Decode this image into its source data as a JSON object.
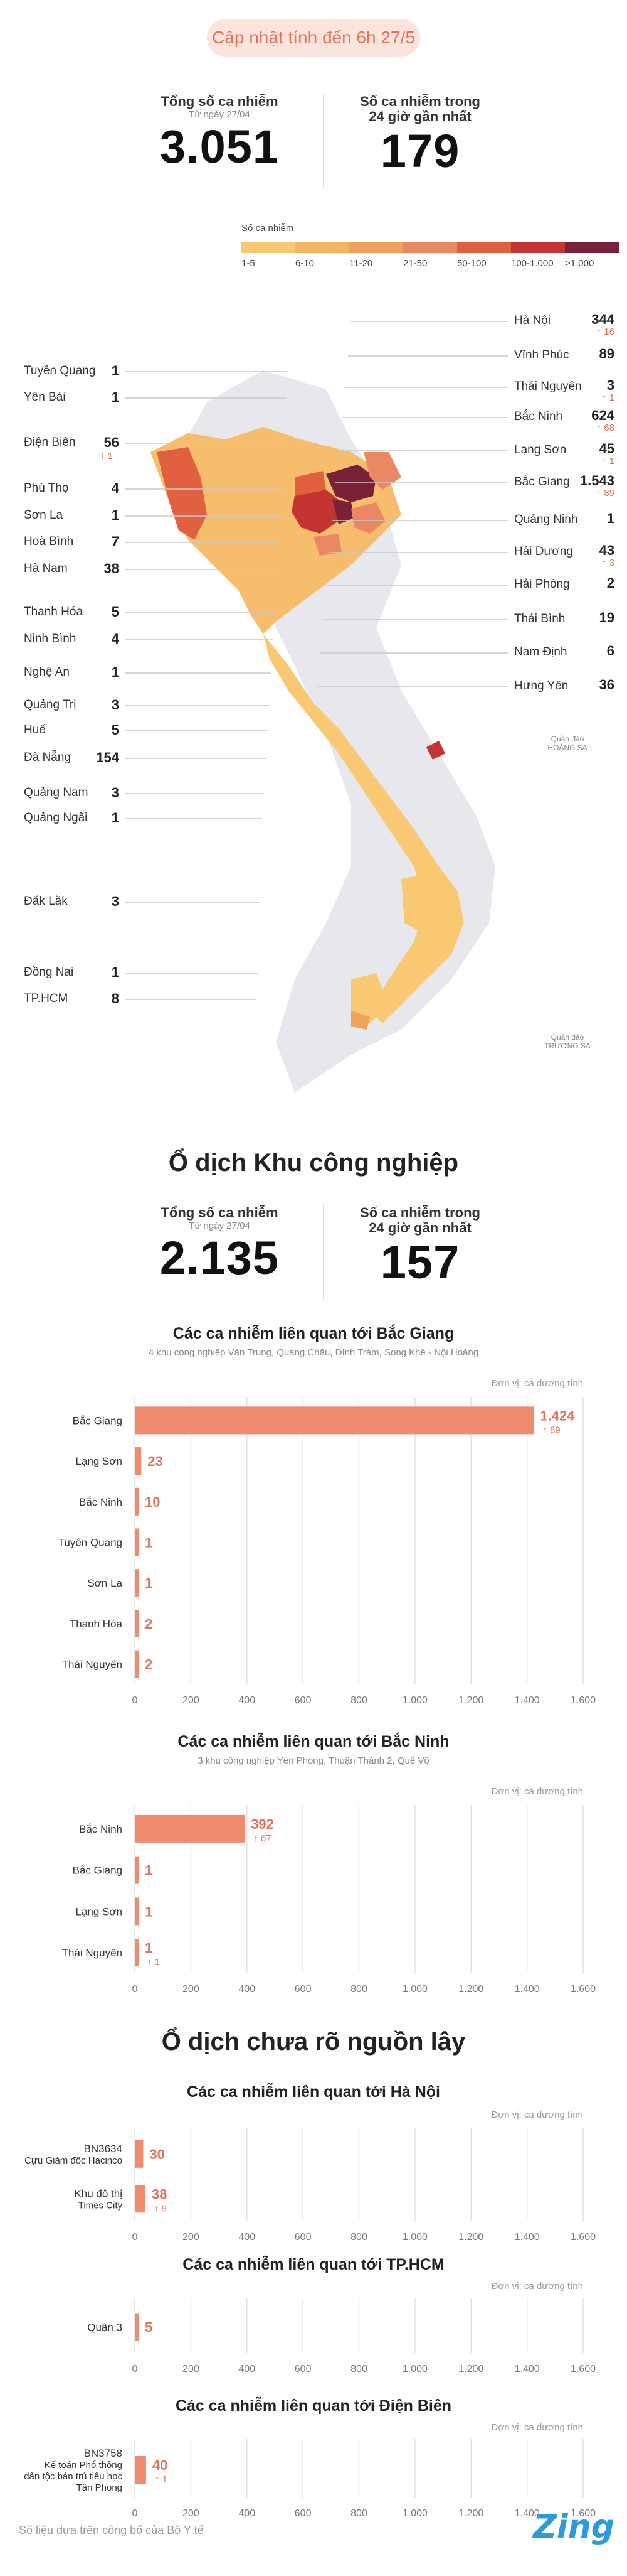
{
  "header": {
    "updated": "Cập nhật tính đến 6h 27/5"
  },
  "summary": {
    "total_label": "Tổng số ca nhiễm",
    "total_sub": "Từ ngày 27/04",
    "total_value": "3.051",
    "recent_label_1": "Số ca nhiễm trong",
    "recent_label_2": "24 giờ gần nhất",
    "recent_value": "179"
  },
  "legend": {
    "title": "Số ca nhiễm",
    "items": [
      {
        "label": "1-5",
        "color": "#f8c873"
      },
      {
        "label": "6-10",
        "color": "#f3b763"
      },
      {
        "label": "11-20",
        "color": "#efa25a"
      },
      {
        "label": "21-50",
        "color": "#e98863"
      },
      {
        "label": "50-100",
        "color": "#e0603f"
      },
      {
        "label": "100-1.000",
        "color": "#c33432"
      },
      {
        "label": ">1.000",
        "color": "#7b2137"
      }
    ]
  },
  "map": {
    "islands_hs": "Quần đảo HOÀNG SA",
    "islands_ts": "Quần đảo TRƯỜNG SA",
    "left": [
      {
        "name": "Tuyên Quang",
        "value": "1",
        "inc": ""
      },
      {
        "name": "Yên Bái",
        "value": "1",
        "inc": ""
      },
      {
        "name": "Điện Biên",
        "value": "56",
        "inc": "↑ 1"
      },
      {
        "name": "Phú Thọ",
        "value": "4",
        "inc": ""
      },
      {
        "name": "Sơn La",
        "value": "1",
        "inc": ""
      },
      {
        "name": "Hoà Bình",
        "value": "7",
        "inc": ""
      },
      {
        "name": "Hà Nam",
        "value": "38",
        "inc": ""
      },
      {
        "name": "Thanh Hóa",
        "value": "5",
        "inc": ""
      },
      {
        "name": "Ninh Bình",
        "value": "4",
        "inc": ""
      },
      {
        "name": "Nghệ An",
        "value": "1",
        "inc": ""
      },
      {
        "name": "Quảng Trị",
        "value": "3",
        "inc": ""
      },
      {
        "name": "Huế",
        "value": "5",
        "inc": ""
      },
      {
        "name": "Đà Nẵng",
        "value": "154",
        "inc": ""
      },
      {
        "name": "Quảng Nam",
        "value": "3",
        "inc": ""
      },
      {
        "name": "Quảng Ngãi",
        "value": "1",
        "inc": ""
      },
      {
        "name": "Đăk Lăk",
        "value": "3",
        "inc": ""
      },
      {
        "name": "Đồng Nai",
        "value": "1",
        "inc": ""
      },
      {
        "name": "TP.HCM",
        "value": "8",
        "inc": ""
      }
    ],
    "right": [
      {
        "name": "Hà Nội",
        "value": "344",
        "inc": "↑ 16"
      },
      {
        "name": "Vĩnh Phúc",
        "value": "89",
        "inc": ""
      },
      {
        "name": "Thái Nguyên",
        "value": "3",
        "inc": "↑ 1"
      },
      {
        "name": "Bắc Ninh",
        "value": "624",
        "inc": "↑ 68"
      },
      {
        "name": "Lạng Sơn",
        "value": "45",
        "inc": "↑ 1"
      },
      {
        "name": "Bắc Giang",
        "value": "1.543",
        "inc": "↑ 89"
      },
      {
        "name": "Quảng Ninh",
        "value": "1",
        "inc": ""
      },
      {
        "name": "Hải Dương",
        "value": "43",
        "inc": "↑ 3"
      },
      {
        "name": "Hải Phòng",
        "value": "2",
        "inc": ""
      },
      {
        "name": "Thái Bình",
        "value": "19",
        "inc": ""
      },
      {
        "name": "Nam Định",
        "value": "6",
        "inc": ""
      },
      {
        "name": "Hưng Yên",
        "value": "36",
        "inc": ""
      }
    ]
  },
  "industrial": {
    "title": "Ổ dịch Khu công nghiệp",
    "total_label": "Tổng số ca nhiễm",
    "total_sub": "Từ ngày 27/04",
    "total_value": "2.135",
    "recent_label_1": "Số ca nhiễm trong",
    "recent_label_2": "24 giờ gần nhất",
    "recent_value": "157"
  },
  "unknown": {
    "title": "Ổ dịch chưa rõ nguồn lây"
  },
  "unit_label": "Đơn vị: ca dương tính",
  "chart_data": [
    {
      "type": "bar",
      "title": "Các ca nhiễm liên quan tới Bắc Giang",
      "subtitle": "4 khu công nghiệp Vân Trung, Quang Châu, Đình Trám, Song Khê - Nội Hoàng",
      "categories": [
        "Bắc Giang",
        "Lạng Sơn",
        "Bắc Ninh",
        "Tuyên Quang",
        "Sơn La",
        "Thanh Hóa",
        "Thái Nguyên"
      ],
      "values": [
        1424,
        23,
        10,
        1,
        1,
        2,
        2
      ],
      "value_labels": [
        "1.424",
        "23",
        "10",
        "1",
        "1",
        "2",
        "2"
      ],
      "increase": [
        "↑ 89",
        "",
        "",
        "",
        "",
        "",
        ""
      ],
      "xlim": [
        0,
        1600
      ],
      "ticks": [
        "0",
        "200",
        "400",
        "600",
        "800",
        "1.000",
        "1.200",
        "1.400",
        "1.600"
      ],
      "color": "#ef8b6f"
    },
    {
      "type": "bar",
      "title": "Các ca nhiễm liên quan tới Bắc Ninh",
      "subtitle": "3 khu công nghiệp Yên Phong, Thuận Thành 2, Quế Võ",
      "categories": [
        "Bắc Ninh",
        "Bắc Giang",
        "Lạng Sơn",
        "Thái Nguyên"
      ],
      "values": [
        392,
        1,
        1,
        1
      ],
      "value_labels": [
        "392",
        "1",
        "1",
        "1"
      ],
      "increase": [
        "↑ 67",
        "",
        "",
        "↑ 1"
      ],
      "xlim": [
        0,
        1600
      ],
      "ticks": [
        "0",
        "200",
        "400",
        "600",
        "800",
        "1.000",
        "1.200",
        "1.400",
        "1.600"
      ],
      "color": "#ef8b6f"
    },
    {
      "type": "bar",
      "title": "Các ca nhiễm liên quan tới Hà Nội",
      "categories": [
        "BN3634\nCựu Giám đốc Hacinco",
        "Khu đô thị\nTimes City"
      ],
      "values": [
        30,
        38
      ],
      "value_labels": [
        "30",
        "38"
      ],
      "increase": [
        "",
        "↑ 9"
      ],
      "xlim": [
        0,
        1600
      ],
      "ticks": [
        "0",
        "200",
        "400",
        "600",
        "800",
        "1.000",
        "1.200",
        "1.400",
        "1.600"
      ],
      "color": "#ef8b6f"
    },
    {
      "type": "bar",
      "title": "Các ca nhiễm liên quan tới TP.HCM",
      "categories": [
        "Quận 3"
      ],
      "values": [
        5
      ],
      "value_labels": [
        "5"
      ],
      "increase": [
        ""
      ],
      "xlim": [
        0,
        1600
      ],
      "ticks": [
        "0",
        "200",
        "400",
        "600",
        "800",
        "1.000",
        "1.200",
        "1.400",
        "1.600"
      ],
      "color": "#ef8b6f"
    },
    {
      "type": "bar",
      "title": "Các ca nhiễm liên quan tới Điện Biên",
      "categories": [
        "BN3758\nKế toán Phổ thông\ndân tộc bán trú tiểu học\nTân Phong"
      ],
      "values": [
        40
      ],
      "value_labels": [
        "40"
      ],
      "increase": [
        "↑ 1"
      ],
      "xlim": [
        0,
        1600
      ],
      "ticks": [
        "0",
        "200",
        "400",
        "600",
        "800",
        "1.000",
        "1.200",
        "1.400",
        "1.600"
      ],
      "color": "#ef8b6f"
    }
  ],
  "footer": {
    "source": "Số liệu dựa trên công bố của Bộ Y tế",
    "logo": "Zing"
  }
}
